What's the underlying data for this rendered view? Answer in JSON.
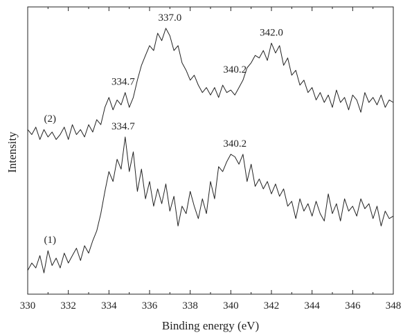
{
  "chart_data": {
    "type": "line",
    "xlabel": "Binding energy (eV)",
    "ylabel": "Intensity",
    "xlim": [
      330,
      348
    ],
    "ylim": [
      0,
      1
    ],
    "x_ticks": [
      "330",
      "332",
      "334",
      "336",
      "338",
      "340",
      "342",
      "344",
      "346",
      "348"
    ],
    "grid": false,
    "legend": "none",
    "line_color": "#222222",
    "series": [
      {
        "name": "(1)",
        "x": [
          330.0,
          330.2,
          330.4,
          330.6,
          330.8,
          331.0,
          331.2,
          331.4,
          331.6,
          331.8,
          332.0,
          332.2,
          332.4,
          332.6,
          332.8,
          333.0,
          333.2,
          333.4,
          333.6,
          333.8,
          334.0,
          334.2,
          334.4,
          334.6,
          334.8,
          335.0,
          335.2,
          335.4,
          335.6,
          335.8,
          336.0,
          336.2,
          336.4,
          336.6,
          336.8,
          337.0,
          337.2,
          337.4,
          337.6,
          337.8,
          338.0,
          338.2,
          338.4,
          338.6,
          338.8,
          339.0,
          339.2,
          339.4,
          339.6,
          339.8,
          340.0,
          340.2,
          340.4,
          340.6,
          340.8,
          341.0,
          341.2,
          341.4,
          341.6,
          341.8,
          342.0,
          342.2,
          342.4,
          342.6,
          342.8,
          343.0,
          343.2,
          343.4,
          343.6,
          343.8,
          344.0,
          344.2,
          344.4,
          344.6,
          344.8,
          345.0,
          345.2,
          345.4,
          345.6,
          345.8,
          346.0,
          346.2,
          346.4,
          346.6,
          346.8,
          347.0,
          347.2,
          347.4,
          347.6,
          347.8,
          348.0
        ],
        "y": [
          0.04,
          0.07,
          0.05,
          0.1,
          0.03,
          0.12,
          0.06,
          0.09,
          0.05,
          0.11,
          0.07,
          0.1,
          0.13,
          0.08,
          0.14,
          0.11,
          0.16,
          0.2,
          0.27,
          0.36,
          0.44,
          0.4,
          0.49,
          0.45,
          0.58,
          0.44,
          0.52,
          0.36,
          0.45,
          0.33,
          0.4,
          0.3,
          0.37,
          0.31,
          0.39,
          0.28,
          0.34,
          0.22,
          0.3,
          0.27,
          0.36,
          0.3,
          0.25,
          0.33,
          0.27,
          0.4,
          0.33,
          0.46,
          0.44,
          0.48,
          0.51,
          0.5,
          0.47,
          0.51,
          0.4,
          0.47,
          0.38,
          0.41,
          0.37,
          0.4,
          0.35,
          0.39,
          0.34,
          0.37,
          0.3,
          0.32,
          0.25,
          0.33,
          0.28,
          0.31,
          0.26,
          0.32,
          0.27,
          0.24,
          0.35,
          0.27,
          0.31,
          0.24,
          0.33,
          0.28,
          0.3,
          0.26,
          0.33,
          0.29,
          0.31,
          0.25,
          0.3,
          0.22,
          0.28,
          0.25,
          0.26
        ]
      },
      {
        "name": "(2)",
        "x": [
          330.0,
          330.2,
          330.4,
          330.6,
          330.8,
          331.0,
          331.2,
          331.4,
          331.6,
          331.8,
          332.0,
          332.2,
          332.4,
          332.6,
          332.8,
          333.0,
          333.2,
          333.4,
          333.6,
          333.8,
          334.0,
          334.2,
          334.4,
          334.6,
          334.8,
          335.0,
          335.2,
          335.4,
          335.6,
          335.8,
          336.0,
          336.2,
          336.4,
          336.6,
          336.8,
          337.0,
          337.2,
          337.4,
          337.6,
          337.8,
          338.0,
          338.2,
          338.4,
          338.6,
          338.8,
          339.0,
          339.2,
          339.4,
          339.6,
          339.8,
          340.0,
          340.2,
          340.4,
          340.6,
          340.8,
          341.0,
          341.2,
          341.4,
          341.6,
          341.8,
          342.0,
          342.2,
          342.4,
          342.6,
          342.8,
          343.0,
          343.2,
          343.4,
          343.6,
          343.8,
          344.0,
          344.2,
          344.4,
          344.6,
          344.8,
          345.0,
          345.2,
          345.4,
          345.6,
          345.8,
          346.0,
          346.2,
          346.4,
          346.6,
          346.8,
          347.0,
          347.2,
          347.4,
          347.6,
          347.8,
          348.0
        ],
        "y": [
          0.61,
          0.59,
          0.62,
          0.57,
          0.61,
          0.58,
          0.6,
          0.57,
          0.59,
          0.62,
          0.57,
          0.63,
          0.59,
          0.61,
          0.58,
          0.63,
          0.6,
          0.65,
          0.63,
          0.7,
          0.74,
          0.69,
          0.73,
          0.71,
          0.76,
          0.7,
          0.74,
          0.81,
          0.87,
          0.91,
          0.95,
          0.93,
          1.0,
          0.97,
          1.02,
          0.99,
          0.93,
          0.95,
          0.88,
          0.85,
          0.81,
          0.83,
          0.79,
          0.76,
          0.78,
          0.75,
          0.78,
          0.74,
          0.79,
          0.76,
          0.77,
          0.75,
          0.78,
          0.81,
          0.86,
          0.88,
          0.91,
          0.9,
          0.93,
          0.89,
          0.96,
          0.92,
          0.95,
          0.87,
          0.9,
          0.83,
          0.85,
          0.79,
          0.81,
          0.76,
          0.78,
          0.73,
          0.76,
          0.72,
          0.75,
          0.7,
          0.77,
          0.72,
          0.74,
          0.69,
          0.75,
          0.73,
          0.68,
          0.76,
          0.72,
          0.74,
          0.71,
          0.75,
          0.7,
          0.73,
          0.72
        ]
      }
    ],
    "annotations": [
      {
        "series": "(1)",
        "text": "(1)",
        "x": 331.1
      },
      {
        "series": "(1)",
        "text": "334.7",
        "x": 334.7
      },
      {
        "series": "(1)",
        "text": "340.2",
        "x": 340.2
      },
      {
        "series": "(2)",
        "text": "(2)",
        "x": 331.1
      },
      {
        "series": "(2)",
        "text": "334.7",
        "x": 334.7
      },
      {
        "series": "(2)",
        "text": "337.0",
        "x": 337.0
      },
      {
        "series": "(2)",
        "text": "340.2",
        "x": 340.2
      },
      {
        "series": "(2)",
        "text": "342.0",
        "x": 342.0
      }
    ]
  }
}
